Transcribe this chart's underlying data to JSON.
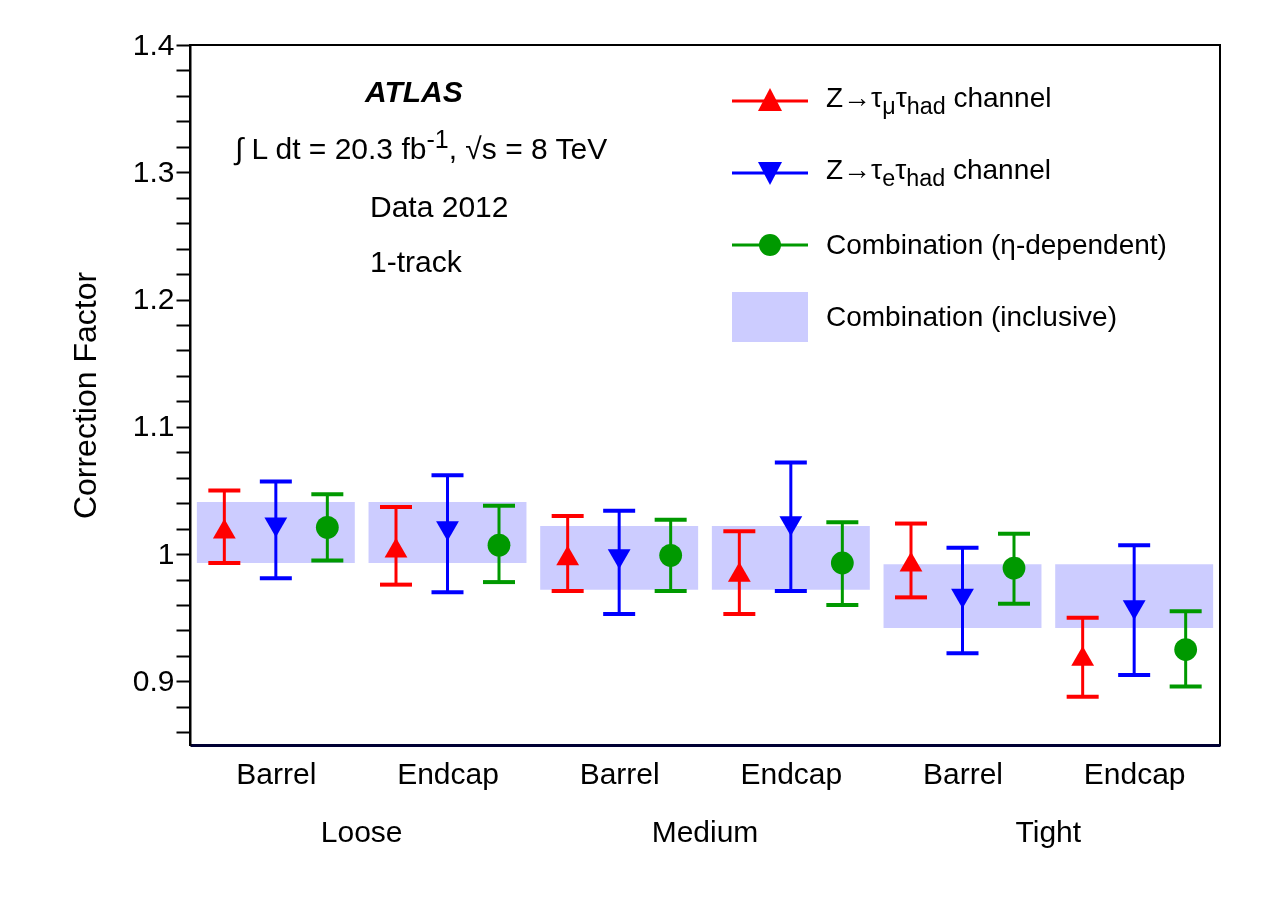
{
  "chart_data": {
    "type": "scatter",
    "ylabel": "Correction Factor",
    "categories": [
      "Barrel",
      "Endcap",
      "Barrel",
      "Endcap",
      "Barrel",
      "Endcap"
    ],
    "series": [
      {
        "name": "Combination (inclusive)",
        "type": "bar",
        "color": "#ccccff",
        "values": [
          0.048,
          0.048,
          0.05,
          0.05,
          0.05,
          0.05
        ],
        "base": [
          0.993,
          0.993,
          0.972,
          0.972,
          0.942,
          0.942
        ]
      },
      {
        "name": "Z→τ$_{μ}$τ$_{had}$ channel",
        "color": "#ff0000",
        "marker": "triangle",
        "values": [
          1.02,
          1.005,
          0.999,
          0.986,
          0.994,
          0.92
        ],
        "errors": [
          [
            0.993,
            1.05
          ],
          [
            0.976,
            1.037
          ],
          [
            0.971,
            1.03
          ],
          [
            0.953,
            1.018
          ],
          [
            0.966,
            1.024
          ],
          [
            0.888,
            0.95
          ]
        ]
      },
      {
        "name": "Z→τ$_{e}$τ$_{had}$ channel",
        "color": "#0000ff",
        "marker": "triangle-down",
        "values": [
          1.021,
          1.018,
          0.996,
          1.022,
          0.965,
          0.956
        ],
        "errors": [
          [
            0.981,
            1.057
          ],
          [
            0.97,
            1.062
          ],
          [
            0.953,
            1.034
          ],
          [
            0.971,
            1.072
          ],
          [
            0.922,
            1.005
          ],
          [
            0.905,
            1.007
          ]
        ]
      },
      {
        "name": "Combination (η-dependent)",
        "color": "#009900",
        "marker": "circle",
        "values": [
          1.021,
          1.007,
          0.999,
          0.993,
          0.989,
          0.925
        ],
        "errors": [
          [
            0.995,
            1.047
          ],
          [
            0.978,
            1.038
          ],
          [
            0.971,
            1.027
          ],
          [
            0.96,
            1.025
          ],
          [
            0.961,
            1.016
          ],
          [
            0.896,
            0.955
          ]
        ]
      }
    ],
    "ylim": [
      0.85,
      1.4
    ],
    "yticks": [
      {
        "value": 0.86,
        "label": null
      },
      {
        "value": 0.88,
        "label": null
      },
      0.9,
      {
        "value": 0.92,
        "label": null
      },
      {
        "value": 0.94,
        "label": null
      },
      {
        "value": 0.96,
        "label": null
      },
      {
        "value": 0.98,
        "label": null
      },
      1,
      {
        "value": 1.02,
        "label": null
      },
      {
        "value": 1.04,
        "label": null
      },
      {
        "value": 1.06,
        "label": null
      },
      {
        "value": 1.08,
        "label": null
      },
      1.1,
      {
        "value": 1.12,
        "label": null
      },
      {
        "value": 1.14,
        "label": null
      },
      {
        "value": 1.16,
        "label": null
      },
      {
        "value": 1.18,
        "label": null
      },
      1.2,
      {
        "value": 1.22,
        "label": null
      },
      {
        "value": 1.24,
        "label": null
      },
      {
        "value": 1.26,
        "label": null
      },
      {
        "value": 1.28,
        "label": null
      },
      1.3,
      {
        "value": 1.32,
        "label": null
      },
      {
        "value": 1.34,
        "label": null
      },
      {
        "value": 1.36,
        "label": null
      },
      {
        "value": 1.38,
        "label": null
      },
      1.4
    ],
    "annotations": [
      "ATLAS",
      "∫ L dt = 20.3 fb$^{-1}$,  √s = 8 TeV",
      "Data 2012",
      "1-track",
      "Loose",
      "Medium",
      "Tight"
    ],
    "grid": false,
    "legend": "top right"
  }
}
